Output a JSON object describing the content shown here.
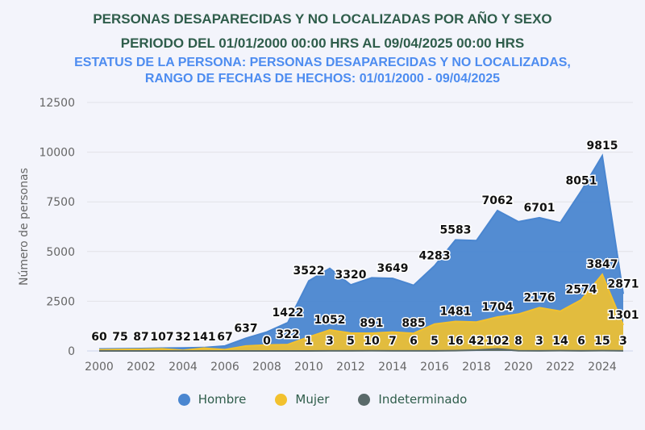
{
  "chart_data": {
    "type": "area",
    "title": "PERSONAS DESAPARECIDAS Y NO LOCALIZADAS POR AÑO Y SEXO",
    "title2": "PERIODO DEL 01/01/2000 00:00 HRS AL 09/04/2025 00:00 HRS",
    "subtitle_line1": "ESTATUS DE LA PERSONA: PERSONAS DESAPARECIDAS Y NO LOCALIZADAS,",
    "subtitle_line2": "RANGO DE FECHAS DE HECHOS: 01/01/2000 - 09/04/2025",
    "ylabel": "Número de personas",
    "xlabel": "",
    "ylim": [
      0,
      12500
    ],
    "yticks": [
      "0",
      "2500",
      "5000",
      "7500",
      "10000",
      "12500"
    ],
    "xticks": [
      "2000",
      "2002",
      "2004",
      "2006",
      "2008",
      "2010",
      "2012",
      "2014",
      "2016",
      "2018",
      "2020",
      "2022",
      "2024"
    ],
    "x": [
      2000,
      2001,
      2002,
      2003,
      2004,
      2005,
      2006,
      2007,
      2008,
      2009,
      2010,
      2011,
      2012,
      2013,
      2014,
      2015,
      2016,
      2017,
      2018,
      2019,
      2020,
      2021,
      2022,
      2023,
      2024,
      2025
    ],
    "grid": true,
    "legend_position": "bottom",
    "series": [
      {
        "name": "Hombre",
        "color": "#4a86d0",
        "values": [
          100,
          110,
          120,
          140,
          150,
          170,
          250,
          637,
          950,
          1422,
          3522,
          4150,
          3320,
          3680,
          3649,
          3300,
          4283,
          5583,
          5550,
          7062,
          6500,
          6701,
          6450,
          8051,
          9815,
          2871
        ],
        "label_years": [
          2007,
          2009,
          2010,
          2012,
          2014,
          2016,
          2017,
          2019,
          2021,
          2023,
          2024,
          2025
        ]
      },
      {
        "name": "Mujer",
        "color": "#f2c12e",
        "values": [
          60,
          75,
          87,
          107,
          32,
          141,
          67,
          250,
          300,
          322,
          700,
          1052,
          900,
          891,
          950,
          885,
          1350,
          1481,
          1450,
          1704,
          1850,
          2176,
          2000,
          2574,
          3847,
          1301
        ],
        "label_years": [
          2000,
          2001,
          2002,
          2003,
          2004,
          2005,
          2006,
          2009,
          2011,
          2013,
          2015,
          2017,
          2019,
          2021,
          2023,
          2024,
          2025
        ]
      },
      {
        "name": "Indeterminado",
        "color": "#5a6a6a",
        "values": [
          0,
          0,
          0,
          0,
          0,
          0,
          0,
          0,
          0,
          1,
          1,
          3,
          5,
          10,
          7,
          6,
          5,
          16,
          42,
          102,
          8,
          3,
          14,
          6,
          15,
          3
        ],
        "label_years": [
          2008,
          2010,
          2011,
          2012,
          2013,
          2014,
          2015,
          2016,
          2017,
          2018,
          2019,
          2020,
          2021,
          2022,
          2023,
          2024,
          2025
        ]
      }
    ]
  }
}
